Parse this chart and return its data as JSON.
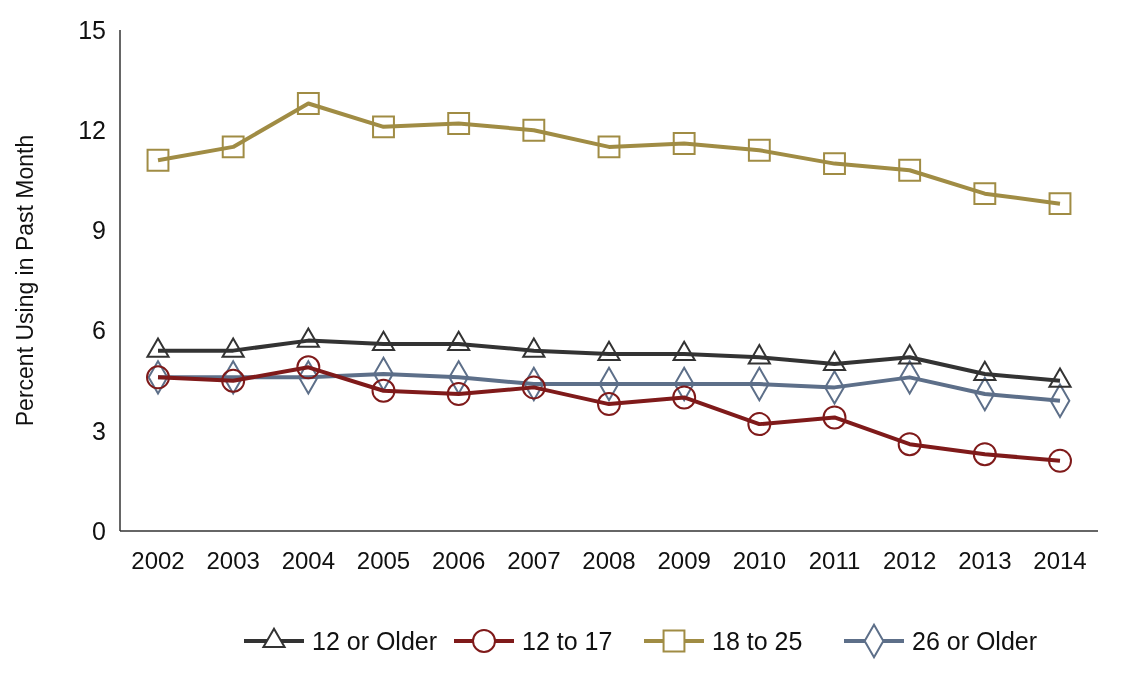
{
  "chart_data": {
    "type": "line",
    "ylabel": "Percent Using in Past Month",
    "categories": [
      "2002",
      "2003",
      "2004",
      "2005",
      "2006",
      "2007",
      "2008",
      "2009",
      "2010",
      "2011",
      "2012",
      "2013",
      "2014"
    ],
    "ylim": [
      0,
      15
    ],
    "yticks": [
      0,
      3,
      6,
      9,
      12,
      15
    ],
    "grid": false,
    "legend": "bottom",
    "line_style": "solid",
    "series": [
      {
        "name": "12 or Older",
        "color": "#333333",
        "marker": "triangle",
        "values": [
          5.4,
          5.4,
          5.7,
          5.6,
          5.6,
          5.4,
          5.3,
          5.3,
          5.2,
          5.0,
          5.2,
          4.7,
          4.5
        ]
      },
      {
        "name": "12 to 17",
        "color": "#7f1a1a",
        "marker": "circle",
        "values": [
          4.6,
          4.5,
          4.9,
          4.2,
          4.1,
          4.3,
          3.8,
          4.0,
          3.2,
          3.4,
          2.6,
          2.3,
          2.1
        ]
      },
      {
        "name": "18 to 25",
        "color": "#a08c44",
        "marker": "square",
        "values": [
          11.1,
          11.5,
          12.8,
          12.1,
          12.2,
          12.0,
          11.5,
          11.6,
          11.4,
          11.0,
          10.8,
          10.1,
          9.8
        ]
      },
      {
        "name": "26 or Older",
        "color": "#5d6f89",
        "marker": "diamond",
        "values": [
          4.6,
          4.6,
          4.6,
          4.7,
          4.6,
          4.4,
          4.4,
          4.4,
          4.4,
          4.3,
          4.6,
          4.1,
          3.9
        ]
      }
    ]
  }
}
